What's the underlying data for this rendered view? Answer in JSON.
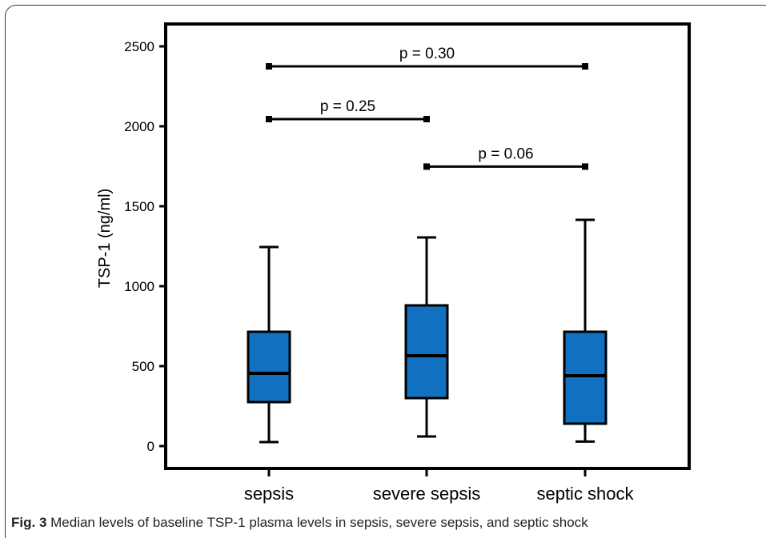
{
  "chart_data": {
    "type": "box",
    "ylabel": "TSP-1 (ng/ml)",
    "xlabel": "",
    "ylim": [
      0,
      2500
    ],
    "yticks": [
      0,
      500,
      1000,
      1500,
      2000,
      2500
    ],
    "grid": false,
    "categories": [
      "sepsis",
      "severe sepsis",
      "septic shock"
    ],
    "box_color": "#1170c0",
    "boxes": [
      {
        "category": "sepsis",
        "min": 25,
        "q1": 275,
        "median": 455,
        "q3": 715,
        "max": 1245
      },
      {
        "category": "severe sepsis",
        "min": 60,
        "q1": 300,
        "median": 565,
        "q3": 880,
        "max": 1305
      },
      {
        "category": "septic shock",
        "min": 28,
        "q1": 140,
        "median": 440,
        "q3": 715,
        "max": 1415
      }
    ],
    "comparisons": [
      {
        "from": "sepsis",
        "to": "septic shock",
        "y": 2375,
        "label": "p = 0.30"
      },
      {
        "from": "sepsis",
        "to": "severe sepsis",
        "y": 2045,
        "label": "p = 0.25"
      },
      {
        "from": "severe sepsis",
        "to": "septic shock",
        "y": 1748,
        "label": "p = 0.06"
      }
    ]
  },
  "caption": {
    "label": "Fig. 3",
    "text": " Median levels of baseline TSP-1 plasma levels in sepsis, severe sepsis, and septic shock"
  }
}
